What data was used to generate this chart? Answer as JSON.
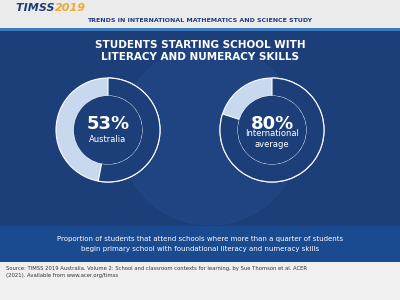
{
  "title_line1": "STUDENTS STARTING SCHOOL WITH",
  "title_line2": "LITERACY AND NUMERACY SKILLS",
  "header_text": "TRENDS IN INTERNATIONAL MATHEMATICS AND SCIENCE STUDY",
  "australia_pct": 53,
  "intl_pct": 80,
  "australia_label": "Australia",
  "intl_label": "International\naverage",
  "description": "Proportion of students that attend schools where more than a quarter of students\nbegin primary school with foundational literacy and numeracy skills",
  "source": "Source: TIMSS 2019 Australia. Volume 2: School and classroom contexts for learning, by Sue Thomson et al. ACER\n(2021). Available from www.acer.org/timss",
  "bg_color": "#1c3f7a",
  "header_bg": "#ebebeb",
  "donut_filled_color": "#1c3f7a",
  "donut_empty_color": "#c8d8ef",
  "donut_outline_color": "#ffffff",
  "desc_bar_color": "#1a4a90",
  "source_bg": "#f0f0f0",
  "source_color": "#333333",
  "title_color": "#ffffff",
  "pct_color": "#ffffff",
  "label_color": "#ffffff",
  "header_title_color": "#1c3f7a",
  "timss_color": "#1c3f7a",
  "year_color": "#f0a830",
  "sep_color": "#3a7abf",
  "desc_color": "#ffffff"
}
